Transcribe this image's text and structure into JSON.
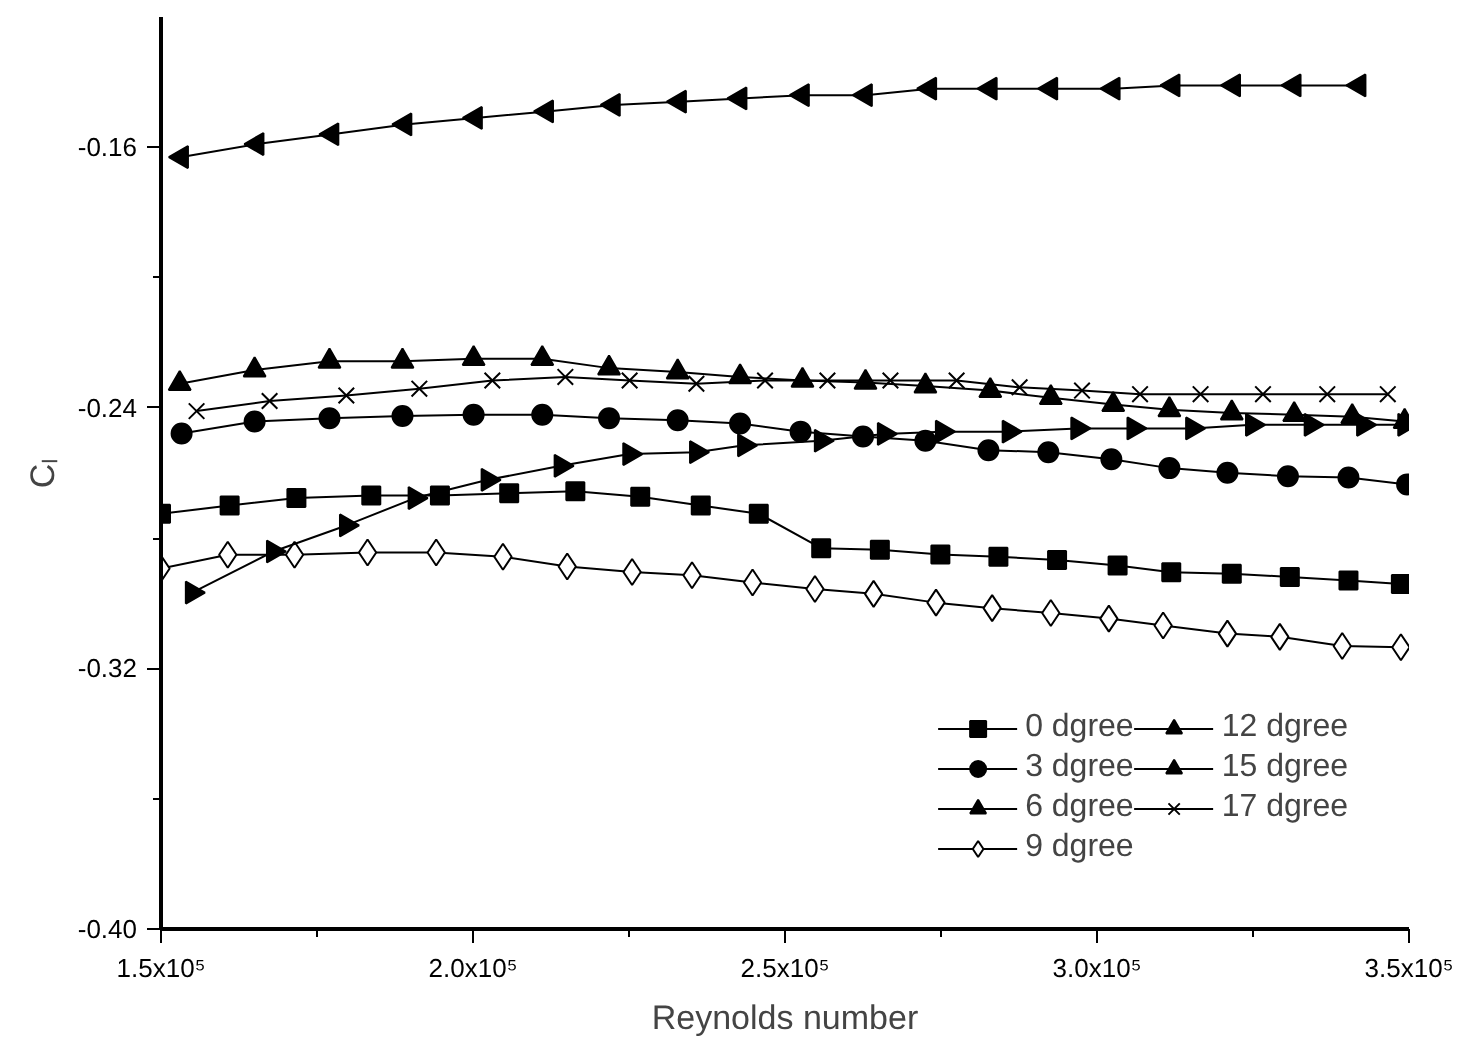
{
  "chart_data": {
    "type": "line",
    "xlabel": "Reynolds number",
    "ylabel": "Cₗ",
    "xlim": [
      150000,
      350000
    ],
    "ylim": [
      -0.4,
      -0.12
    ],
    "xticks": [
      {
        "value": 150000,
        "label": "1.5x10⁵"
      },
      {
        "value": 175000,
        "label": null
      },
      {
        "value": 200000,
        "label": "2.0x10⁵"
      },
      {
        "value": 225000,
        "label": null
      },
      {
        "value": 250000,
        "label": "2.5x10⁵"
      },
      {
        "value": 275000,
        "label": null
      },
      {
        "value": 300000,
        "label": "3.0x10⁵"
      },
      {
        "value": 325000,
        "label": null
      },
      {
        "value": 350000,
        "label": "3.5x10⁵"
      }
    ],
    "yticks": [
      {
        "value": -0.4,
        "label": "-0.40"
      },
      {
        "value": -0.36,
        "label": null
      },
      {
        "value": -0.32,
        "label": "-0.32"
      },
      {
        "value": -0.28,
        "label": null
      },
      {
        "value": -0.24,
        "label": "-0.24"
      },
      {
        "value": -0.2,
        "label": null
      },
      {
        "value": -0.16,
        "label": "-0.16"
      }
    ],
    "grid": false,
    "legend": "bottom right",
    "line_style": "solid",
    "series": [
      {
        "name": "0 dgree",
        "color": "#000000",
        "marker": "square",
        "x": [
          150000,
          161000,
          171700,
          183700,
          194700,
          205800,
          216400,
          226800,
          236500,
          245800,
          255800,
          265200,
          274900,
          284200,
          293600,
          303300,
          311900,
          321600,
          330900,
          340300,
          348700
        ],
        "values": [
          -0.2725,
          -0.27,
          -0.2677,
          -0.2669,
          -0.2669,
          -0.2662,
          -0.2656,
          -0.2673,
          -0.27,
          -0.2725,
          -0.2831,
          -0.2836,
          -0.285,
          -0.2857,
          -0.2867,
          -0.2884,
          -0.2905,
          -0.2909,
          -0.2919,
          -0.293,
          -0.2941
        ]
      },
      {
        "name": "3 dgree",
        "color": "#000000",
        "marker": "circle",
        "x": [
          153300,
          165000,
          177000,
          188700,
          200100,
          211100,
          221800,
          232800,
          242800,
          252500,
          262500,
          272500,
          282600,
          292200,
          302300,
          311600,
          320900,
          330600,
          340300,
          349700
        ],
        "values": [
          -0.2479,
          -0.2442,
          -0.2432,
          -0.2425,
          -0.2421,
          -0.2421,
          -0.2432,
          -0.2438,
          -0.2448,
          -0.2473,
          -0.2488,
          -0.2501,
          -0.253,
          -0.2536,
          -0.2558,
          -0.2585,
          -0.2599,
          -0.261,
          -0.2614,
          -0.2635
        ]
      },
      {
        "name": "6 dgree",
        "color": "#000000",
        "marker": "triangle",
        "x": [
          153000,
          165000,
          177000,
          188700,
          200100,
          211100,
          221800,
          232800,
          242800,
          252800,
          262900,
          272500,
          282900,
          292600,
          302600,
          311600,
          321600,
          331600,
          340900,
          349300
        ],
        "values": [
          -0.2326,
          -0.2284,
          -0.2257,
          -0.2257,
          -0.2249,
          -0.2249,
          -0.2278,
          -0.229,
          -0.2305,
          -0.2316,
          -0.2322,
          -0.2333,
          -0.2347,
          -0.2369,
          -0.239,
          -0.2406,
          -0.2416,
          -0.2421,
          -0.2427,
          -0.2442
        ]
      },
      {
        "name": "9 dgree",
        "color": "#000000",
        "marker": "diamond-open",
        "x": [
          150000,
          160700,
          171400,
          183100,
          194100,
          204800,
          215100,
          225500,
          235100,
          244800,
          254800,
          264200,
          274200,
          283200,
          292600,
          301900,
          310600,
          320900,
          329300,
          339300,
          348700
        ],
        "values": [
          -0.2893,
          -0.2851,
          -0.2851,
          -0.2844,
          -0.2844,
          -0.2857,
          -0.2887,
          -0.2904,
          -0.2914,
          -0.2936,
          -0.2956,
          -0.2971,
          -0.2998,
          -0.3015,
          -0.303,
          -0.3047,
          -0.3068,
          -0.3093,
          -0.3103,
          -0.3131,
          -0.3135
        ]
      },
      {
        "name": "12 dgree",
        "color": "#000000",
        "marker": "triangle-left",
        "x": [
          153300,
          165400,
          177400,
          189100,
          200400,
          211800,
          222500,
          233100,
          242800,
          252800,
          262900,
          273200,
          282900,
          292600,
          302600,
          312200,
          321900,
          331600,
          342000
        ],
        "values": [
          -0.163,
          -0.159,
          -0.156,
          -0.153,
          -0.151,
          -0.149,
          -0.147,
          -0.146,
          -0.145,
          -0.144,
          -0.144,
          -0.142,
          -0.142,
          -0.142,
          -0.142,
          -0.141,
          -0.141,
          -0.141,
          -0.141
        ]
      },
      {
        "name": "15 dgree",
        "color": "#000000",
        "marker": "triangle-right",
        "x": [
          155000,
          168000,
          179700,
          190700,
          202400,
          214100,
          225100,
          235800,
          243500,
          255800,
          265900,
          275200,
          285900,
          296900,
          305900,
          315300,
          324900,
          334300,
          342700,
          349300
        ],
        "values": [
          -0.2967,
          -0.2841,
          -0.2761,
          -0.2677,
          -0.2621,
          -0.2578,
          -0.2542,
          -0.2536,
          -0.2515,
          -0.2501,
          -0.248,
          -0.2473,
          -0.2473,
          -0.2463,
          -0.2463,
          -0.2463,
          -0.2452,
          -0.2452,
          -0.2452,
          -0.2452
        ]
      },
      {
        "name": "17 dgree",
        "color": "#000000",
        "marker": "cross",
        "x": [
          155700,
          167400,
          179700,
          191400,
          203100,
          214800,
          225100,
          235800,
          246800,
          256800,
          266900,
          277500,
          287600,
          297600,
          306900,
          316600,
          326600,
          336900,
          346600
        ],
        "values": [
          -0.241,
          -0.2379,
          -0.2362,
          -0.2341,
          -0.2316,
          -0.2305,
          -0.2316,
          -0.2326,
          -0.2316,
          -0.2316,
          -0.2316,
          -0.2316,
          -0.2337,
          -0.2347,
          -0.2358,
          -0.2358,
          -0.2358,
          -0.2358,
          -0.2358
        ]
      }
    ]
  }
}
